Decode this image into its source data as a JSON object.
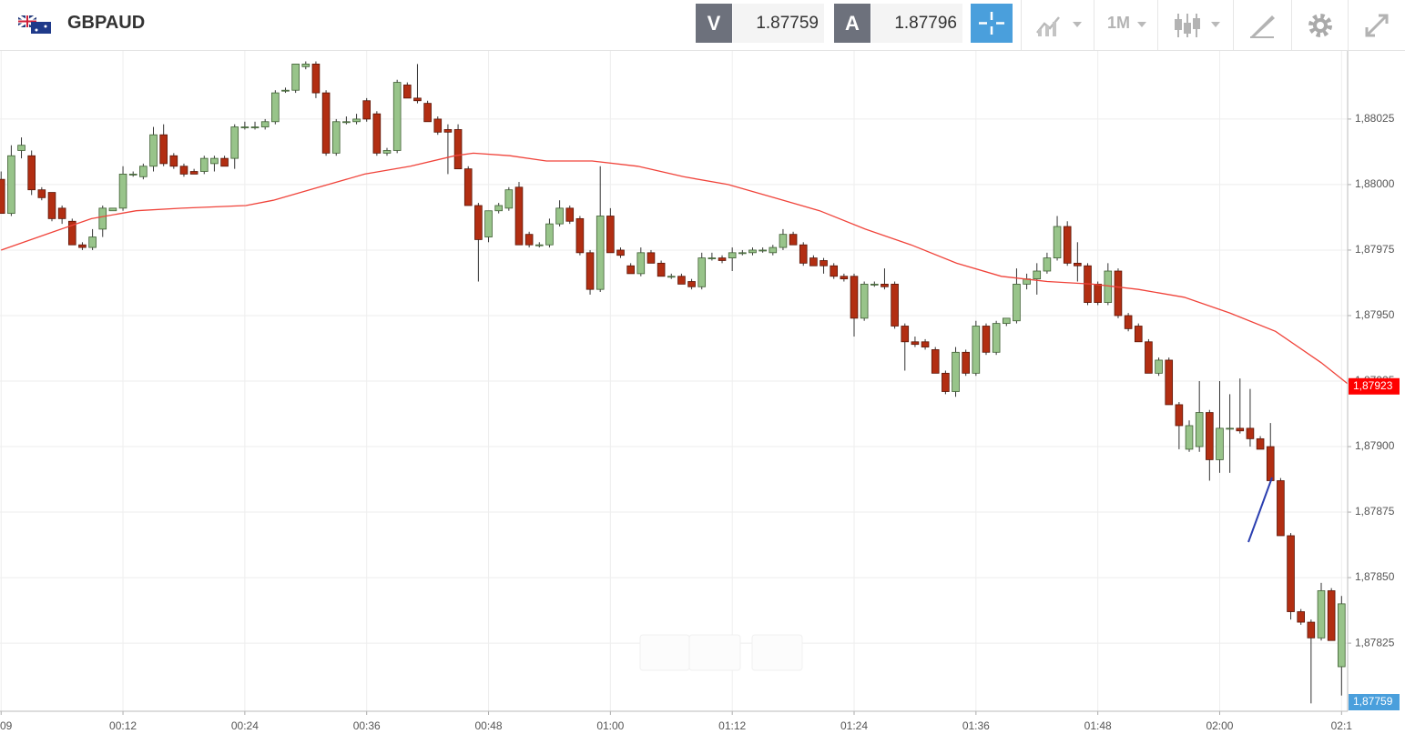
{
  "toolbar": {
    "symbol": "GBPAUD",
    "bid_label": "V",
    "bid": "1.87759",
    "ask_label": "A",
    "ask": "1.87796",
    "timeframe": "1M"
  },
  "chart_data": {
    "type": "candlestick",
    "x": [
      0,
      1,
      2,
      3,
      4,
      5,
      6,
      7,
      8,
      9,
      10,
      11,
      12,
      13,
      14,
      15,
      16,
      17,
      18,
      19,
      20,
      21,
      22,
      23,
      24,
      25,
      26,
      27,
      28,
      29,
      30,
      31,
      32,
      33,
      34,
      35,
      36,
      37,
      38,
      39,
      40,
      41,
      42,
      43,
      44,
      45,
      46,
      47,
      48,
      49,
      50,
      51,
      52,
      53,
      54,
      55,
      56,
      57,
      58,
      59,
      60,
      61,
      62,
      63,
      64,
      65,
      66,
      67,
      68,
      69,
      70,
      71,
      72,
      73,
      74,
      75,
      76,
      77,
      78,
      79,
      80,
      81,
      82,
      83,
      84,
      85,
      86,
      87,
      88,
      89,
      90,
      91,
      92,
      93,
      94,
      95,
      96,
      97,
      98,
      99,
      100,
      101,
      102,
      103,
      104,
      105,
      106,
      107,
      108,
      109,
      110,
      111,
      112,
      113,
      114,
      115,
      116,
      117,
      118,
      119,
      120,
      121,
      122,
      123,
      124,
      125,
      126,
      127,
      128,
      129,
      130,
      131,
      132
    ],
    "open": [
      1.88002,
      1.87989,
      1.88013,
      1.88011,
      1.87998,
      1.87997,
      1.87991,
      1.87986,
      1.87977,
      1.87976,
      1.87983,
      1.8799,
      1.87991,
      1.88004,
      1.88003,
      1.88007,
      1.88019,
      1.88011,
      1.88007,
      1.88005,
      1.88005,
      1.88008,
      1.8801,
      1.8801,
      1.88022,
      1.88022,
      1.88022,
      1.88024,
      1.88036,
      1.88036,
      1.88045,
      1.88046,
      1.88035,
      1.88012,
      1.88024,
      1.88024,
      1.88032,
      1.88027,
      1.88012,
      1.88013,
      1.88038,
      1.88033,
      1.88031,
      1.88025,
      1.88021,
      1.88021,
      1.88006,
      1.87992,
      1.8798,
      1.8799,
      1.87991,
      1.87999,
      1.87981,
      1.87977,
      1.87977,
      1.87985,
      1.87991,
      1.87987,
      1.87974,
      1.8796,
      1.87988,
      1.87975,
      1.87969,
      1.87966,
      1.87974,
      1.8797,
      1.87965,
      1.87965,
      1.87963,
      1.87961,
      1.87972,
      1.87972,
      1.87972,
      1.87974,
      1.87974,
      1.87975,
      1.87974,
      1.87976,
      1.87981,
      1.87977,
      1.87972,
      1.87971,
      1.87969,
      1.87965,
      1.87965,
      1.87949,
      1.87962,
      1.87962,
      1.87962,
      1.87946,
      1.8794,
      1.8794,
      1.87937,
      1.87928,
      1.87921,
      1.87936,
      1.87928,
      1.87946,
      1.87936,
      1.87947,
      1.87948,
      1.87962,
      1.87964,
      1.87967,
      1.87972,
      1.87984,
      1.8797,
      1.87969,
      1.87962,
      1.87955,
      1.87967,
      1.8795,
      1.87946,
      1.8794,
      1.87928,
      1.87933,
      1.87916,
      1.87899,
      1.879,
      1.87913,
      1.87895,
      1.87907,
      1.87907,
      1.87907,
      1.87903,
      1.879,
      1.87887,
      1.87866,
      1.87837,
      1.87833,
      1.87827,
      1.87845,
      1.87816
    ],
    "high": [
      1.88005,
      1.88015,
      1.88018,
      1.88013,
      1.87999,
      1.87997,
      1.87992,
      1.87987,
      1.87978,
      1.87983,
      1.87992,
      1.87991,
      1.88007,
      1.88005,
      1.88008,
      1.88022,
      1.88023,
      1.88012,
      1.88008,
      1.88006,
      1.88011,
      1.88011,
      1.88011,
      1.88023,
      1.88024,
      1.88024,
      1.88025,
      1.88036,
      1.88037,
      1.88046,
      1.88047,
      1.88047,
      1.88036,
      1.88025,
      1.88026,
      1.88027,
      1.88033,
      1.88028,
      1.88014,
      1.8804,
      1.88039,
      1.88046,
      1.88032,
      1.88026,
      1.88023,
      1.88023,
      1.88007,
      1.87993,
      1.8799,
      1.87993,
      1.87999,
      1.88001,
      1.87982,
      1.87978,
      1.87987,
      1.87994,
      1.87992,
      1.87988,
      1.87975,
      1.88007,
      1.87991,
      1.87976,
      1.8797,
      1.87976,
      1.87975,
      1.87971,
      1.87966,
      1.87966,
      1.87964,
      1.87974,
      1.87974,
      1.87973,
      1.87976,
      1.87975,
      1.87976,
      1.87976,
      1.87977,
      1.87983,
      1.87982,
      1.87978,
      1.87973,
      1.87972,
      1.8797,
      1.87966,
      1.87966,
      1.87963,
      1.87963,
      1.87968,
      1.87963,
      1.87947,
      1.87942,
      1.87941,
      1.87938,
      1.87929,
      1.87938,
      1.87937,
      1.87948,
      1.87947,
      1.87948,
      1.87949,
      1.87968,
      1.87966,
      1.8797,
      1.87974,
      1.87988,
      1.87986,
      1.87978,
      1.8797,
      1.87963,
      1.8797,
      1.87968,
      1.87951,
      1.87947,
      1.87941,
      1.87934,
      1.87934,
      1.87917,
      1.8791,
      1.87925,
      1.87914,
      1.87925,
      1.8792,
      1.87926,
      1.87922,
      1.87904,
      1.87909,
      1.87888,
      1.87867,
      1.87838,
      1.87834,
      1.87848,
      1.87846,
      1.87843
    ],
    "low": [
      1.87989,
      1.87988,
      1.8801,
      1.87996,
      1.87994,
      1.87986,
      1.87985,
      1.87977,
      1.87975,
      1.87975,
      1.8798,
      1.8799,
      1.8799,
      1.88003,
      1.88002,
      1.88005,
      1.88007,
      1.88006,
      1.88003,
      1.88004,
      1.88004,
      1.88005,
      1.88007,
      1.88006,
      1.88021,
      1.88021,
      1.88021,
      1.88023,
      1.88035,
      1.88035,
      1.88044,
      1.88033,
      1.88011,
      1.88011,
      1.88023,
      1.88023,
      1.88024,
      1.88011,
      1.88011,
      1.88012,
      1.88033,
      1.88031,
      1.88024,
      1.88019,
      1.88004,
      1.88006,
      1.87992,
      1.87963,
      1.87978,
      1.87989,
      1.8799,
      1.87977,
      1.87976,
      1.87976,
      1.87976,
      1.87984,
      1.87985,
      1.87973,
      1.87958,
      1.87959,
      1.87974,
      1.87972,
      1.87966,
      1.87965,
      1.8797,
      1.87965,
      1.87964,
      1.87962,
      1.8796,
      1.8796,
      1.87971,
      1.8797,
      1.87967,
      1.87973,
      1.87973,
      1.87974,
      1.87973,
      1.87975,
      1.87977,
      1.87969,
      1.87969,
      1.87966,
      1.87964,
      1.87963,
      1.87942,
      1.87948,
      1.87961,
      1.8796,
      1.87945,
      1.87929,
      1.87938,
      1.87937,
      1.87928,
      1.8792,
      1.87919,
      1.87927,
      1.87927,
      1.87935,
      1.87935,
      1.87946,
      1.87947,
      1.8796,
      1.87958,
      1.87966,
      1.87971,
      1.87969,
      1.87963,
      1.87954,
      1.87954,
      1.87954,
      1.87949,
      1.87944,
      1.8794,
      1.87928,
      1.87927,
      1.87916,
      1.87899,
      1.87898,
      1.87898,
      1.87887,
      1.8789,
      1.8789,
      1.87905,
      1.879,
      1.87899,
      1.87887,
      1.87866,
      1.87834,
      1.87832,
      1.87802,
      1.87826,
      1.87826,
      1.87805
    ],
    "close": [
      1.87989,
      1.88011,
      1.88015,
      1.87998,
      1.87995,
      1.87987,
      1.87987,
      1.87977,
      1.87976,
      1.8798,
      1.87991,
      1.87991,
      1.88004,
      1.88004,
      1.88007,
      1.88019,
      1.88008,
      1.88007,
      1.88004,
      1.88004,
      1.8801,
      1.8801,
      1.88007,
      1.88022,
      1.88022,
      1.88022,
      1.88024,
      1.88035,
      1.88036,
      1.88046,
      1.88046,
      1.88035,
      1.88012,
      1.88024,
      1.88024,
      1.88025,
      1.88025,
      1.88012,
      1.88013,
      1.88039,
      1.88033,
      1.88032,
      1.88024,
      1.8802,
      1.8802,
      1.88006,
      1.87992,
      1.87979,
      1.8799,
      1.87992,
      1.87998,
      1.87977,
      1.87977,
      1.87977,
      1.87985,
      1.87991,
      1.87986,
      1.87974,
      1.8796,
      1.87988,
      1.87974,
      1.87973,
      1.87966,
      1.87974,
      1.8797,
      1.87965,
      1.87965,
      1.87962,
      1.87961,
      1.87972,
      1.87972,
      1.87971,
      1.87974,
      1.87974,
      1.87975,
      1.87975,
      1.87976,
      1.87981,
      1.87977,
      1.8797,
      1.87969,
      1.87969,
      1.87965,
      1.87964,
      1.87949,
      1.87962,
      1.87962,
      1.87961,
      1.87946,
      1.8794,
      1.87939,
      1.87938,
      1.87928,
      1.87921,
      1.87936,
      1.87928,
      1.87946,
      1.87936,
      1.87947,
      1.87949,
      1.87962,
      1.87964,
      1.87967,
      1.87972,
      1.87984,
      1.8797,
      1.87969,
      1.87955,
      1.87955,
      1.87967,
      1.8795,
      1.87945,
      1.8794,
      1.87928,
      1.87933,
      1.87916,
      1.87908,
      1.87908,
      1.87913,
      1.87895,
      1.87907,
      1.87907,
      1.87906,
      1.87903,
      1.87899,
      1.87887,
      1.87866,
      1.87837,
      1.87833,
      1.87827,
      1.87845,
      1.87826,
      1.8784
    ],
    "up_color": "#98c48a",
    "down_color": "#b22e12",
    "moving_average": {
      "color": "#f0433a",
      "x": [
        0,
        4.4,
        8.9,
        13.3,
        17.8,
        24.1,
        26.8,
        31.3,
        35.8,
        40.3,
        44.7,
        46.5,
        50.1,
        53.7,
        58.2,
        62.7,
        67.2,
        71.6,
        76.1,
        80.6,
        85.1,
        89.6,
        94.1,
        98.5,
        103,
        107.5,
        112,
        116.5,
        121,
        125.5,
        130,
        132.6
      ],
      "values": [
        1.87975,
        1.87981,
        1.87987,
        1.8799,
        1.87991,
        1.87992,
        1.87994,
        1.87999,
        1.88004,
        1.88007,
        1.88011,
        1.88012,
        1.88011,
        1.88009,
        1.88009,
        1.88007,
        1.88003,
        1.88,
        1.87995,
        1.8799,
        1.87983,
        1.87977,
        1.8797,
        1.87965,
        1.87963,
        1.87962,
        1.8796,
        1.87957,
        1.87951,
        1.87944,
        1.87932,
        1.87924
      ]
    },
    "xlim": [
      -0.11,
      132.6
    ],
    "xticks": [
      {
        "value": 0,
        "label": "09"
      },
      {
        "value": 12,
        "label": "00:12"
      },
      {
        "value": 24,
        "label": "00:24"
      },
      {
        "value": 36,
        "label": "00:36"
      },
      {
        "value": 48,
        "label": "00:48"
      },
      {
        "value": 60,
        "label": "01:00"
      },
      {
        "value": 72,
        "label": "01:12"
      },
      {
        "value": 84,
        "label": "01:24"
      },
      {
        "value": 96,
        "label": "01:36"
      },
      {
        "value": 108,
        "label": "01:48"
      },
      {
        "value": 120,
        "label": "02:00"
      },
      {
        "value": 132,
        "label": "02:1"
      }
    ],
    "ylim": [
      1.87799,
      1.88051
    ],
    "yticks": [
      {
        "value": 1.87825,
        "label": "1,87825"
      },
      {
        "value": 1.8785,
        "label": "1,87850"
      },
      {
        "value": 1.87875,
        "label": "1,87875"
      },
      {
        "value": 1.879,
        "label": "1,87900"
      },
      {
        "value": 1.87925,
        "label": "1,87925"
      },
      {
        "value": 1.8795,
        "label": "1,87950"
      },
      {
        "value": 1.87975,
        "label": "1,87975"
      },
      {
        "value": 1.88,
        "label": "1,88000"
      },
      {
        "value": 1.88025,
        "label": "1,88025"
      }
    ],
    "grid": true,
    "price_markers": [
      {
        "value": 1.87923,
        "label": "1,87923",
        "color": "#ff0000"
      },
      {
        "value": 1.87759,
        "label": "1,87759",
        "color": "#4a9fdc"
      }
    ]
  }
}
